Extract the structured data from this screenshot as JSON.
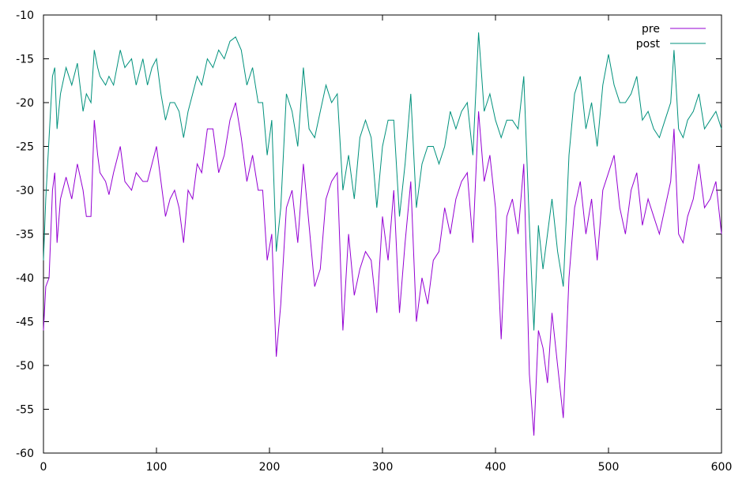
{
  "chart_data": {
    "type": "line",
    "title": "",
    "xlabel": "",
    "ylabel": "",
    "xlim": [
      0,
      600
    ],
    "ylim": [
      -60,
      -10
    ],
    "x_ticks": [
      "0",
      "100",
      "200",
      "300",
      "400",
      "500",
      "600"
    ],
    "y_ticks": [
      "-10",
      "-15",
      "-20",
      "-25",
      "-30",
      "-35",
      "-40",
      "-45",
      "-50",
      "-55",
      "-60"
    ],
    "grid": false,
    "legend": {
      "placement": "top-right"
    },
    "series": [
      {
        "name": "pre",
        "color": "#9400d3",
        "points": [
          [
            0,
            -46
          ],
          [
            2,
            -41
          ],
          [
            5,
            -40
          ],
          [
            8,
            -30
          ],
          [
            10,
            -28
          ],
          [
            12,
            -36
          ],
          [
            15,
            -31
          ],
          [
            20,
            -28.5
          ],
          [
            25,
            -31
          ],
          [
            30,
            -27
          ],
          [
            35,
            -30
          ],
          [
            38,
            -33
          ],
          [
            42,
            -33
          ],
          [
            45,
            -22
          ],
          [
            48,
            -26
          ],
          [
            50,
            -28
          ],
          [
            55,
            -29
          ],
          [
            58,
            -30.5
          ],
          [
            62,
            -28
          ],
          [
            68,
            -25
          ],
          [
            72,
            -29
          ],
          [
            78,
            -30
          ],
          [
            82,
            -28
          ],
          [
            88,
            -29
          ],
          [
            92,
            -29
          ],
          [
            96,
            -27
          ],
          [
            100,
            -25
          ],
          [
            104,
            -29
          ],
          [
            108,
            -33
          ],
          [
            112,
            -31
          ],
          [
            116,
            -30
          ],
          [
            120,
            -32
          ],
          [
            124,
            -36
          ],
          [
            128,
            -30
          ],
          [
            132,
            -31
          ],
          [
            136,
            -27
          ],
          [
            140,
            -28
          ],
          [
            145,
            -23
          ],
          [
            150,
            -23
          ],
          [
            155,
            -28
          ],
          [
            160,
            -26
          ],
          [
            165,
            -22
          ],
          [
            170,
            -20
          ],
          [
            175,
            -24
          ],
          [
            180,
            -29
          ],
          [
            185,
            -26
          ],
          [
            190,
            -30
          ],
          [
            194,
            -30
          ],
          [
            198,
            -38
          ],
          [
            202,
            -35
          ],
          [
            206,
            -49
          ],
          [
            210,
            -43
          ],
          [
            215,
            -32
          ],
          [
            220,
            -30
          ],
          [
            225,
            -36
          ],
          [
            230,
            -27
          ],
          [
            235,
            -34
          ],
          [
            240,
            -41
          ],
          [
            245,
            -39
          ],
          [
            250,
            -31
          ],
          [
            255,
            -29
          ],
          [
            260,
            -28
          ],
          [
            265,
            -46
          ],
          [
            270,
            -35
          ],
          [
            275,
            -42
          ],
          [
            280,
            -39
          ],
          [
            285,
            -37
          ],
          [
            290,
            -38
          ],
          [
            295,
            -44
          ],
          [
            300,
            -33
          ],
          [
            305,
            -38
          ],
          [
            310,
            -30
          ],
          [
            315,
            -44
          ],
          [
            320,
            -36
          ],
          [
            325,
            -29
          ],
          [
            330,
            -45
          ],
          [
            335,
            -40
          ],
          [
            340,
            -43
          ],
          [
            345,
            -38
          ],
          [
            350,
            -37
          ],
          [
            355,
            -32
          ],
          [
            360,
            -35
          ],
          [
            365,
            -31
          ],
          [
            370,
            -29
          ],
          [
            375,
            -28
          ],
          [
            380,
            -36
          ],
          [
            385,
            -21
          ],
          [
            390,
            -29
          ],
          [
            395,
            -26
          ],
          [
            400,
            -32
          ],
          [
            405,
            -47
          ],
          [
            410,
            -33
          ],
          [
            415,
            -31
          ],
          [
            420,
            -35
          ],
          [
            425,
            -27
          ],
          [
            430,
            -51
          ],
          [
            434,
            -58
          ],
          [
            438,
            -46
          ],
          [
            442,
            -48
          ],
          [
            446,
            -52
          ],
          [
            450,
            -44
          ],
          [
            455,
            -50
          ],
          [
            460,
            -56
          ],
          [
            465,
            -40
          ],
          [
            470,
            -32
          ],
          [
            475,
            -29
          ],
          [
            480,
            -35
          ],
          [
            485,
            -31
          ],
          [
            490,
            -38
          ],
          [
            495,
            -30
          ],
          [
            500,
            -28
          ],
          [
            505,
            -26
          ],
          [
            510,
            -32
          ],
          [
            515,
            -35
          ],
          [
            520,
            -30
          ],
          [
            525,
            -28
          ],
          [
            530,
            -34
          ],
          [
            535,
            -31
          ],
          [
            540,
            -33
          ],
          [
            545,
            -35
          ],
          [
            550,
            -32
          ],
          [
            555,
            -29
          ],
          [
            558,
            -23
          ],
          [
            562,
            -35
          ],
          [
            566,
            -36
          ],
          [
            570,
            -33
          ],
          [
            575,
            -31
          ],
          [
            580,
            -27
          ],
          [
            585,
            -32
          ],
          [
            590,
            -31
          ],
          [
            595,
            -29
          ],
          [
            600,
            -35
          ]
        ]
      },
      {
        "name": "post",
        "color": "#00917c",
        "points": [
          [
            0,
            -38
          ],
          [
            2,
            -31
          ],
          [
            5,
            -24
          ],
          [
            8,
            -17
          ],
          [
            10,
            -16
          ],
          [
            12,
            -23
          ],
          [
            15,
            -19
          ],
          [
            20,
            -16
          ],
          [
            25,
            -18
          ],
          [
            30,
            -15.5
          ],
          [
            35,
            -21
          ],
          [
            38,
            -19
          ],
          [
            42,
            -20
          ],
          [
            45,
            -14
          ],
          [
            48,
            -16
          ],
          [
            50,
            -17
          ],
          [
            55,
            -18
          ],
          [
            58,
            -17
          ],
          [
            62,
            -18
          ],
          [
            68,
            -14
          ],
          [
            72,
            -16
          ],
          [
            78,
            -15
          ],
          [
            82,
            -18
          ],
          [
            88,
            -15
          ],
          [
            92,
            -18
          ],
          [
            96,
            -16
          ],
          [
            100,
            -15
          ],
          [
            104,
            -19
          ],
          [
            108,
            -22
          ],
          [
            112,
            -20
          ],
          [
            116,
            -20
          ],
          [
            120,
            -21
          ],
          [
            124,
            -24
          ],
          [
            128,
            -21
          ],
          [
            132,
            -19
          ],
          [
            136,
            -17
          ],
          [
            140,
            -18
          ],
          [
            145,
            -15
          ],
          [
            150,
            -16
          ],
          [
            155,
            -14
          ],
          [
            160,
            -15
          ],
          [
            165,
            -13
          ],
          [
            170,
            -12.5
          ],
          [
            175,
            -14
          ],
          [
            180,
            -18
          ],
          [
            185,
            -16
          ],
          [
            190,
            -20
          ],
          [
            194,
            -20
          ],
          [
            198,
            -26
          ],
          [
            202,
            -22
          ],
          [
            206,
            -37
          ],
          [
            210,
            -32
          ],
          [
            215,
            -19
          ],
          [
            220,
            -21
          ],
          [
            225,
            -25
          ],
          [
            230,
            -16
          ],
          [
            235,
            -23
          ],
          [
            240,
            -24
          ],
          [
            245,
            -21
          ],
          [
            250,
            -18
          ],
          [
            255,
            -20
          ],
          [
            260,
            -19
          ],
          [
            265,
            -30
          ],
          [
            270,
            -26
          ],
          [
            275,
            -31
          ],
          [
            280,
            -24
          ],
          [
            285,
            -22
          ],
          [
            290,
            -24
          ],
          [
            295,
            -32
          ],
          [
            300,
            -25
          ],
          [
            305,
            -22
          ],
          [
            310,
            -22
          ],
          [
            315,
            -33
          ],
          [
            320,
            -27
          ],
          [
            325,
            -19
          ],
          [
            330,
            -32
          ],
          [
            335,
            -27
          ],
          [
            340,
            -25
          ],
          [
            345,
            -25
          ],
          [
            350,
            -27
          ],
          [
            355,
            -25
          ],
          [
            360,
            -21
          ],
          [
            365,
            -23
          ],
          [
            370,
            -21
          ],
          [
            375,
            -20
          ],
          [
            380,
            -26
          ],
          [
            385,
            -12
          ],
          [
            390,
            -21
          ],
          [
            395,
            -19
          ],
          [
            400,
            -22
          ],
          [
            405,
            -24
          ],
          [
            410,
            -22
          ],
          [
            415,
            -22
          ],
          [
            420,
            -23
          ],
          [
            425,
            -17
          ],
          [
            430,
            -34
          ],
          [
            434,
            -46
          ],
          [
            438,
            -34
          ],
          [
            442,
            -39
          ],
          [
            446,
            -35
          ],
          [
            450,
            -31
          ],
          [
            455,
            -37
          ],
          [
            460,
            -41
          ],
          [
            465,
            -26
          ],
          [
            470,
            -19
          ],
          [
            475,
            -17
          ],
          [
            480,
            -23
          ],
          [
            485,
            -20
          ],
          [
            490,
            -25
          ],
          [
            495,
            -18
          ],
          [
            500,
            -14.5
          ],
          [
            505,
            -18
          ],
          [
            510,
            -20
          ],
          [
            515,
            -20
          ],
          [
            520,
            -19
          ],
          [
            525,
            -17
          ],
          [
            530,
            -22
          ],
          [
            535,
            -21
          ],
          [
            540,
            -23
          ],
          [
            545,
            -24
          ],
          [
            550,
            -22
          ],
          [
            555,
            -20
          ],
          [
            558,
            -14
          ],
          [
            562,
            -23
          ],
          [
            566,
            -24
          ],
          [
            570,
            -22
          ],
          [
            575,
            -21
          ],
          [
            580,
            -19
          ],
          [
            585,
            -23
          ],
          [
            590,
            -22
          ],
          [
            595,
            -21
          ],
          [
            600,
            -23
          ]
        ]
      }
    ]
  }
}
